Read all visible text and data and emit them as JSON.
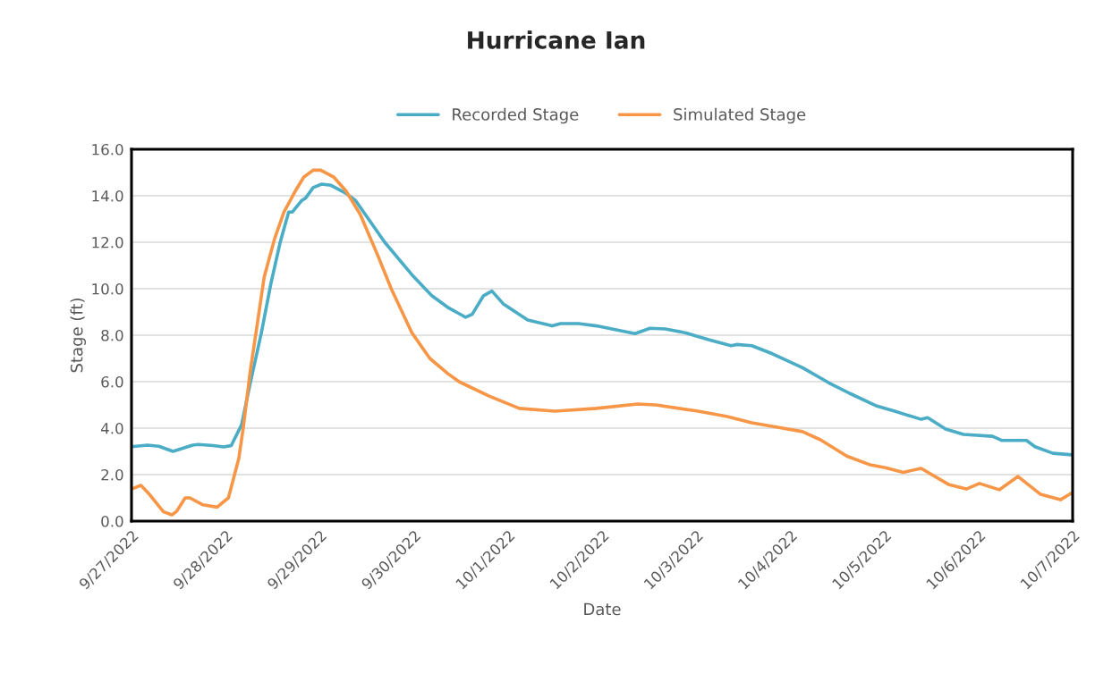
{
  "chart_data": {
    "type": "line",
    "title": "Hurricane Ian",
    "xlabel": "Date",
    "ylabel": "Stage (ft)",
    "xlim": [
      "2022-09-27",
      "2022-10-07"
    ],
    "xticks": [
      {
        "value": "2022-09-27",
        "label": "9/27/2022"
      },
      {
        "value": "2022-09-28",
        "label": "9/28/2022"
      },
      {
        "value": "2022-09-29",
        "label": "9/29/2022"
      },
      {
        "value": "2022-09-30",
        "label": "9/30/2022"
      },
      {
        "value": "2022-10-01",
        "label": "10/1/2022"
      },
      {
        "value": "2022-10-02",
        "label": "10/2/2022"
      },
      {
        "value": "2022-10-03",
        "label": "10/3/2022"
      },
      {
        "value": "2022-10-04",
        "label": "10/4/2022"
      },
      {
        "value": "2022-10-05",
        "label": "10/5/2022"
      },
      {
        "value": "2022-10-06",
        "label": "10/6/2022"
      },
      {
        "value": "2022-10-07",
        "label": "10/7/2022"
      }
    ],
    "ylim": [
      0,
      16
    ],
    "yticks": [
      {
        "value": 0,
        "label": "0.0"
      },
      {
        "value": 2,
        "label": "2.0"
      },
      {
        "value": 4,
        "label": "4.0"
      },
      {
        "value": 6,
        "label": "6.0"
      },
      {
        "value": 8,
        "label": "8.0"
      },
      {
        "value": 10,
        "label": "10.0"
      },
      {
        "value": 12,
        "label": "12.0"
      },
      {
        "value": 14,
        "label": "14.0"
      },
      {
        "value": 16,
        "label": "16.0"
      }
    ],
    "grid": "y",
    "legend": "top",
    "marker": "none",
    "line_style": "solid",
    "series": [
      {
        "name": "Recorded Stage",
        "color": "#4bacc6",
        "x": [
          "2022-09-27T00:00",
          "2022-09-27T04:05",
          "2022-09-27T06:58",
          "2022-09-27T10:34",
          "2022-09-27T15:36",
          "2022-09-27T17:02",
          "2022-09-27T20:53",
          "2022-09-27T23:31",
          "2022-09-28T01:26",
          "2022-09-28T04:05",
          "2022-09-28T06:14",
          "2022-09-28T09:07",
          "2022-09-28T11:31",
          "2022-09-28T13:55",
          "2022-09-28T16:05",
          "2022-09-28T17:02",
          "2022-09-28T19:26",
          "2022-09-28T20:24",
          "2022-09-28T22:19",
          "2022-09-29T00:29",
          "2022-09-29T02:53",
          "2022-09-29T06:43",
          "2022-09-29T09:07",
          "2022-09-29T16:34",
          "2022-09-29T23:31",
          "2022-09-30T04:34",
          "2022-09-30T08:38",
          "2022-09-30T13:12",
          "2022-09-30T14:53",
          "2022-09-30T17:46",
          "2022-09-30T19:55",
          "2022-09-30T22:48",
          "2022-10-01T05:02",
          "2022-10-01T11:17",
          "2022-10-01T13:26",
          "2022-10-01T18:00",
          "2022-10-01T22:34",
          "2022-10-02T08:24",
          "2022-10-02T12:14",
          "2022-10-02T16:05",
          "2022-10-02T21:22",
          "2022-10-03T03:22",
          "2022-10-03T08:53",
          "2022-10-03T10:19",
          "2022-10-03T14:10",
          "2022-10-03T19:26",
          "2022-10-04T03:07",
          "2022-10-04T09:50",
          "2022-10-04T15:07",
          "2022-10-04T22:05",
          "2022-10-05T02:38",
          "2022-10-05T09:22",
          "2022-10-05T11:02",
          "2022-10-05T15:36",
          "2022-10-05T20:10",
          "2022-10-06T03:36",
          "2022-10-06T06:00",
          "2022-10-06T12:14",
          "2022-10-06T14:24",
          "2022-10-06T18:58",
          "2022-10-07T00:00"
        ],
        "values": [
          3.2,
          3.27,
          3.22,
          3.0,
          3.27,
          3.3,
          3.25,
          3.19,
          3.25,
          4.15,
          5.9,
          8.1,
          10.2,
          12.0,
          13.3,
          13.3,
          13.8,
          13.9,
          14.35,
          14.5,
          14.45,
          14.1,
          13.8,
          12.0,
          10.6,
          9.7,
          9.2,
          8.77,
          8.9,
          9.7,
          9.9,
          9.35,
          8.65,
          8.4,
          8.5,
          8.5,
          8.4,
          8.07,
          8.3,
          8.27,
          8.1,
          7.8,
          7.55,
          7.6,
          7.55,
          7.2,
          6.6,
          5.95,
          5.5,
          4.95,
          4.73,
          4.38,
          4.45,
          3.96,
          3.73,
          3.65,
          3.47,
          3.47,
          3.2,
          2.92,
          2.85
        ]
      },
      {
        "name": "Simulated Stage",
        "color": "#f79646",
        "x": [
          "2022-09-27T00:00",
          "2022-09-27T02:24",
          "2022-09-27T04:34",
          "2022-09-27T08:10",
          "2022-09-27T10:19",
          "2022-09-27T11:31",
          "2022-09-27T13:41",
          "2022-09-27T14:53",
          "2022-09-27T18:14",
          "2022-09-27T21:50",
          "2022-09-28T00:43",
          "2022-09-28T03:22",
          "2022-09-28T04:34",
          "2022-09-28T06:14",
          "2022-09-28T07:55",
          "2022-09-28T09:50",
          "2022-09-28T12:29",
          "2022-09-28T14:53",
          "2022-09-28T17:46",
          "2022-09-28T19:55",
          "2022-09-28T22:19",
          "2022-09-29T00:14",
          "2022-09-29T03:36",
          "2022-09-29T06:43",
          "2022-09-29T10:19",
          "2022-09-29T14:53",
          "2022-09-29T18:14",
          "2022-09-29T23:31",
          "2022-09-30T04:05",
          "2022-09-30T08:38",
          "2022-09-30T11:31",
          "2022-09-30T19:12",
          "2022-10-01T02:53",
          "2022-10-01T12:00",
          "2022-10-01T22:34",
          "2022-10-02T09:07",
          "2022-10-02T13:41",
          "2022-10-03T00:29",
          "2022-10-03T07:55",
          "2022-10-03T14:10",
          "2022-10-03T19:26",
          "2022-10-04T03:07",
          "2022-10-04T07:41",
          "2022-10-04T14:24",
          "2022-10-04T20:24",
          "2022-10-05T00:14",
          "2022-10-05T04:48",
          "2022-10-05T09:22",
          "2022-10-05T16:19",
          "2022-10-05T20:53",
          "2022-10-06T00:14",
          "2022-10-06T05:17",
          "2022-10-06T10:05",
          "2022-10-06T15:50",
          "2022-10-06T20:53",
          "2022-10-07T00:00"
        ],
        "values": [
          1.38,
          1.54,
          1.15,
          0.4,
          0.27,
          0.42,
          1.0,
          1.0,
          0.7,
          0.6,
          1.0,
          2.7,
          4.1,
          6.4,
          8.3,
          10.5,
          12.15,
          13.3,
          14.2,
          14.8,
          15.1,
          15.1,
          14.8,
          14.2,
          13.2,
          11.4,
          10.0,
          8.1,
          7.0,
          6.35,
          6.0,
          5.38,
          4.85,
          4.73,
          4.85,
          5.04,
          5.0,
          4.73,
          4.5,
          4.23,
          4.08,
          3.85,
          3.5,
          2.8,
          2.42,
          2.3,
          2.1,
          2.27,
          1.58,
          1.38,
          1.62,
          1.35,
          1.92,
          1.15,
          0.92,
          1.23
        ]
      }
    ]
  }
}
